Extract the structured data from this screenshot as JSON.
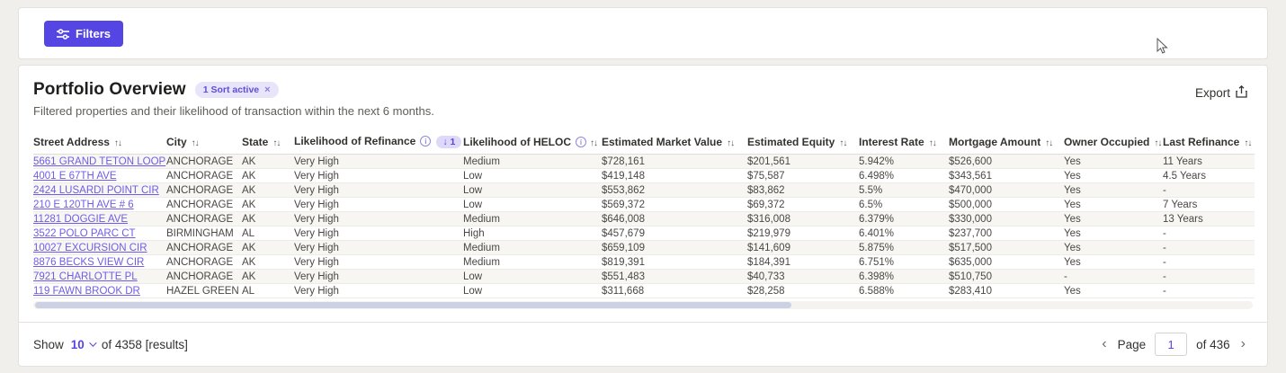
{
  "colors": {
    "accent": "#5546e4",
    "link": "#6f5ce8",
    "badge_bg": "#e8e5fb",
    "row_alt_bg": "#f7f6f2",
    "page_bg": "#f0efeb"
  },
  "toolbar": {
    "filters_label": "Filters"
  },
  "header": {
    "title": "Portfolio Overview",
    "sort_badge": "1 Sort active",
    "sort_badge_close": "×",
    "subtitle": "Filtered properties and their likelihood of transaction within the next 6 months.",
    "export_label": "Export"
  },
  "table": {
    "columns": [
      {
        "key": "street_address",
        "label": "Street Address",
        "sortable": true
      },
      {
        "key": "city",
        "label": "City",
        "sortable": true
      },
      {
        "key": "state",
        "label": "State",
        "sortable": true
      },
      {
        "key": "likelihood_refinance",
        "label": "Likelihood of Refinance",
        "info": true,
        "sort_badge": "↓ 1"
      },
      {
        "key": "likelihood_heloc",
        "label": "Likelihood of HELOC",
        "info": true,
        "sortable": true
      },
      {
        "key": "est_market_value",
        "label": "Estimated Market Value",
        "sortable": true
      },
      {
        "key": "est_equity",
        "label": "Estimated Equity",
        "sortable": true
      },
      {
        "key": "interest_rate",
        "label": "Interest Rate",
        "sortable": true
      },
      {
        "key": "mortgage_amount",
        "label": "Mortgage Amount",
        "sortable": true
      },
      {
        "key": "owner_occupied",
        "label": "Owner Occupied",
        "sortable": true
      },
      {
        "key": "last_refinance",
        "label": "Last Refinance",
        "sortable": true
      }
    ],
    "rows": [
      [
        "5661 GRAND TETON LOOP",
        "ANCHORAGE",
        "AK",
        "Very High",
        "Medium",
        "$728,161",
        "$201,561",
        "5.942%",
        "$526,600",
        "Yes",
        "11 Years"
      ],
      [
        "4001 E 67TH AVE",
        "ANCHORAGE",
        "AK",
        "Very High",
        "Low",
        "$419,148",
        "$75,587",
        "6.498%",
        "$343,561",
        "Yes",
        "4.5 Years"
      ],
      [
        "2424 LUSARDI POINT CIR",
        "ANCHORAGE",
        "AK",
        "Very High",
        "Low",
        "$553,862",
        "$83,862",
        "5.5%",
        "$470,000",
        "Yes",
        "-"
      ],
      [
        "210 E 120TH AVE # 6",
        "ANCHORAGE",
        "AK",
        "Very High",
        "Low",
        "$569,372",
        "$69,372",
        "6.5%",
        "$500,000",
        "Yes",
        "7 Years"
      ],
      [
        "11281 DOGGIE AVE",
        "ANCHORAGE",
        "AK",
        "Very High",
        "Medium",
        "$646,008",
        "$316,008",
        "6.379%",
        "$330,000",
        "Yes",
        "13 Years"
      ],
      [
        "3522 POLO PARC CT",
        "BIRMINGHAM",
        "AL",
        "Very High",
        "High",
        "$457,679",
        "$219,979",
        "6.401%",
        "$237,700",
        "Yes",
        "-"
      ],
      [
        "10027 EXCURSION CIR",
        "ANCHORAGE",
        "AK",
        "Very High",
        "Medium",
        "$659,109",
        "$141,609",
        "5.875%",
        "$517,500",
        "Yes",
        "-"
      ],
      [
        "8876 BECKS VIEW CIR",
        "ANCHORAGE",
        "AK",
        "Very High",
        "Medium",
        "$819,391",
        "$184,391",
        "6.751%",
        "$635,000",
        "Yes",
        "-"
      ],
      [
        "7921 CHARLOTTE PL",
        "ANCHORAGE",
        "AK",
        "Very High",
        "Low",
        "$551,483",
        "$40,733",
        "6.398%",
        "$510,750",
        "-",
        "-"
      ],
      [
        "119 FAWN BROOK DR",
        "HAZEL GREEN",
        "AL",
        "Very High",
        "Low",
        "$311,668",
        "$28,258",
        "6.588%",
        "$283,410",
        "Yes",
        "-"
      ]
    ]
  },
  "footer": {
    "show_label": "Show",
    "page_size": "10",
    "results_text": "of 4358 [results]",
    "prev_arrow": "‹",
    "page_label": "Page",
    "page_value": "1",
    "total_pages_text": "of 436",
    "next_arrow": "›"
  }
}
